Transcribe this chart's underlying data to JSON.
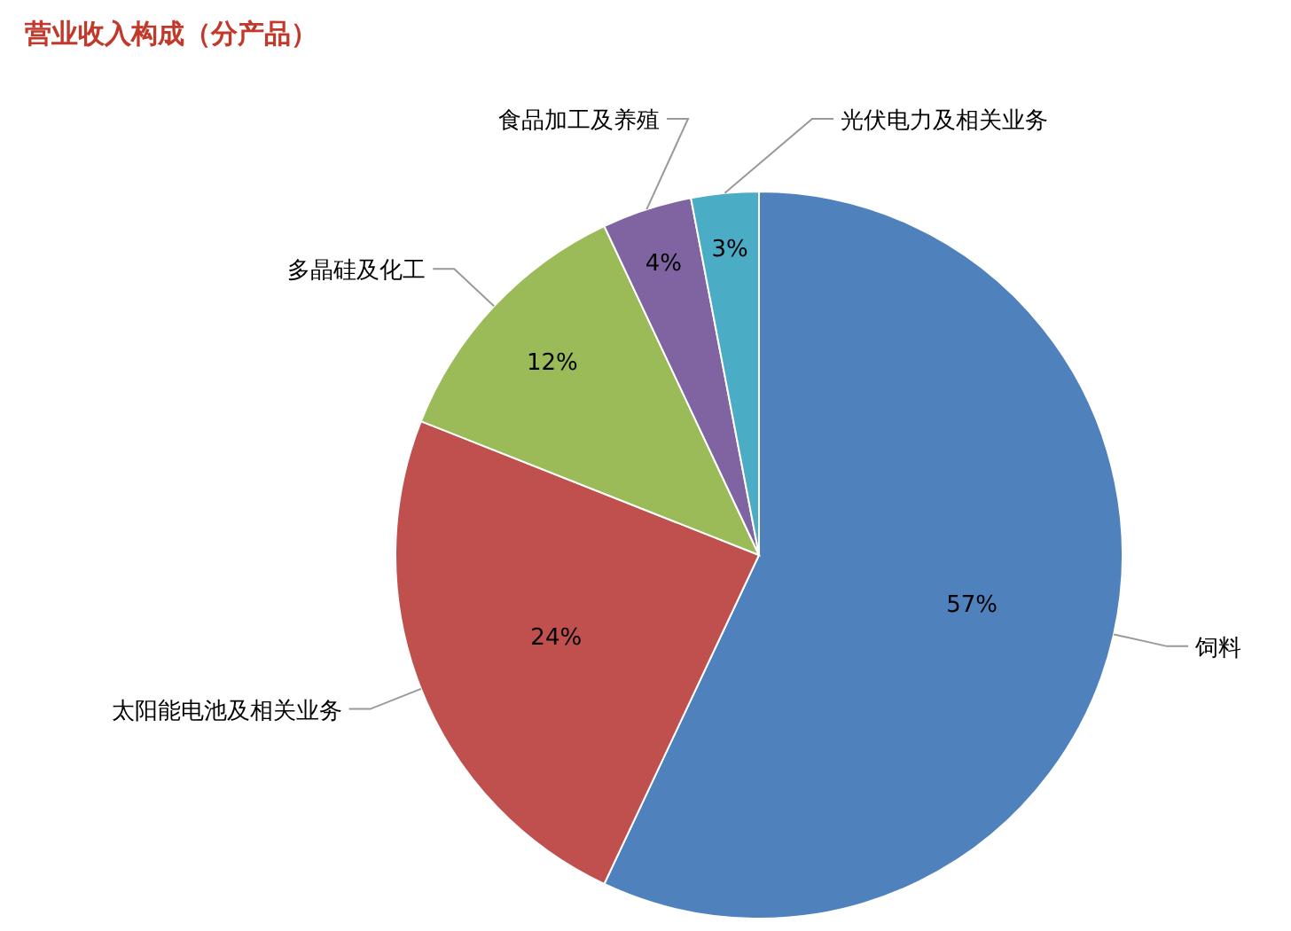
{
  "chart_data": {
    "type": "pie",
    "title": "营业收入构成（分产品）",
    "categories": [
      "饲料",
      "太阳能电池及相关业务",
      "多晶硅及化工",
      "食品加工及养殖",
      "光伏电力及相关业务"
    ],
    "values": [
      57,
      24,
      12,
      4,
      3
    ],
    "colors": [
      "#4f81bd",
      "#c0504d",
      "#9bbb59",
      "#8064a2",
      "#4bacc6"
    ],
    "value_labels": [
      "57%",
      "24%",
      "12%",
      "4%",
      "3%"
    ]
  }
}
